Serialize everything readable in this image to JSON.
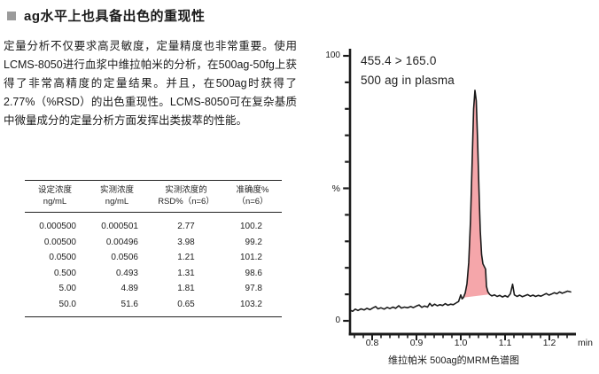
{
  "header": {
    "title": "ag水平上也具备出色的重现性",
    "bullet_color": "#9b9b9b"
  },
  "paragraph": "定量分析不仅要求高灵敏度，定量精度也非常重要。使用LCMS-8050进行血浆中维拉帕米的分析，在500ag-50fg上获得了非常高精度的定量结果。并且，在500ag时获得了2.77%（%RSD）的出色重现性。LCMS-8050可在复杂基质中微量成分的定量分析方面发挥出类拔萃的性能。",
  "table": {
    "headers": [
      {
        "line1": "设定浓度",
        "line2": "ng/mL"
      },
      {
        "line1": "实测浓度",
        "line2": "ng/mL"
      },
      {
        "line1": "实测浓度的",
        "line2": "RSD%（n=6）"
      },
      {
        "line1": "准确度%",
        "line2": "（n=6）"
      }
    ],
    "rows": [
      [
        "0.000500",
        "0.000501",
        "2.77",
        "100.2"
      ],
      [
        "0.00500",
        "0.00496",
        "3.98",
        "99.2"
      ],
      [
        "0.0500",
        "0.0506",
        "1.21",
        "101.2"
      ],
      [
        "0.500",
        "0.493",
        "1.31",
        "98.6"
      ],
      [
        "5.00",
        "4.89",
        "1.81",
        "97.8"
      ],
      [
        "50.0",
        "51.6",
        "0.65",
        "103.2"
      ]
    ]
  },
  "chart_data": {
    "type": "line",
    "title": "MRM chromatogram of verapamil 500 ag",
    "annotation_line1": "455.4 > 165.0",
    "annotation_line2": "500 ag in plasma",
    "caption": "维拉帕米 500ag的MRM色谱图",
    "xlabel": "min",
    "ylabel": "%",
    "y_top_label": "100",
    "y_bottom_label": "0",
    "xlim": [
      0.75,
      1.25
    ],
    "ylim": [
      0,
      100
    ],
    "x_ticks": [
      0.8,
      0.9,
      1.0,
      1.1,
      1.2
    ],
    "x_minor_tick_step": 0.02,
    "y_tick_step": 10,
    "grid": false,
    "legend": false,
    "line_color": "#1a1a1a",
    "fill_color": "#f5a6aa",
    "peak": {
      "apex_time_min": 1.032,
      "apex_height_pct": 87
    },
    "fill_range": [
      1.004,
      1.066
    ],
    "points": [
      [
        0.75,
        4.0
      ],
      [
        0.756,
        3.6
      ],
      [
        0.762,
        4.4
      ],
      [
        0.768,
        3.9
      ],
      [
        0.775,
        4.5
      ],
      [
        0.782,
        4.1
      ],
      [
        0.788,
        4.7
      ],
      [
        0.795,
        4.2
      ],
      [
        0.802,
        4.9
      ],
      [
        0.808,
        5.4
      ],
      [
        0.813,
        4.5
      ],
      [
        0.82,
        4.9
      ],
      [
        0.827,
        4.4
      ],
      [
        0.834,
        5.1
      ],
      [
        0.84,
        4.6
      ],
      [
        0.847,
        5.2
      ],
      [
        0.853,
        4.7
      ],
      [
        0.86,
        5.7
      ],
      [
        0.866,
        4.8
      ],
      [
        0.873,
        5.2
      ],
      [
        0.88,
        4.9
      ],
      [
        0.887,
        5.4
      ],
      [
        0.893,
        5.0
      ],
      [
        0.9,
        5.6
      ],
      [
        0.906,
        6.0
      ],
      [
        0.912,
        5.1
      ],
      [
        0.918,
        5.6
      ],
      [
        0.925,
        5.2
      ],
      [
        0.93,
        6.6
      ],
      [
        0.935,
        5.6
      ],
      [
        0.941,
        6.3
      ],
      [
        0.947,
        5.7
      ],
      [
        0.953,
        6.1
      ],
      [
        0.959,
        5.8
      ],
      [
        0.965,
        6.5
      ],
      [
        0.971,
        5.9
      ],
      [
        0.977,
        6.3
      ],
      [
        0.983,
        6.1
      ],
      [
        0.989,
        6.7
      ],
      [
        0.995,
        7.3
      ],
      [
        1.0,
        9.8
      ],
      [
        1.003,
        8.3
      ],
      [
        1.006,
        8.8
      ],
      [
        1.01,
        10.5
      ],
      [
        1.014,
        14.0
      ],
      [
        1.018,
        22.0
      ],
      [
        1.022,
        38.0
      ],
      [
        1.026,
        62.0
      ],
      [
        1.029,
        80.0
      ],
      [
        1.032,
        87.0
      ],
      [
        1.035,
        83.0
      ],
      [
        1.038,
        68.0
      ],
      [
        1.041,
        50.0
      ],
      [
        1.044,
        34.0
      ],
      [
        1.047,
        25.0
      ],
      [
        1.05,
        21.5
      ],
      [
        1.053,
        20.5
      ],
      [
        1.056,
        19.5
      ],
      [
        1.058,
        13.0
      ],
      [
        1.061,
        11.0
      ],
      [
        1.065,
        10.0
      ],
      [
        1.07,
        9.4
      ],
      [
        1.076,
        9.8
      ],
      [
        1.082,
        9.2
      ],
      [
        1.088,
        9.6
      ],
      [
        1.094,
        9.0
      ],
      [
        1.1,
        9.5
      ],
      [
        1.106,
        9.0
      ],
      [
        1.112,
        10.2
      ],
      [
        1.117,
        13.8
      ],
      [
        1.121,
        9.8
      ],
      [
        1.127,
        9.2
      ],
      [
        1.133,
        9.7
      ],
      [
        1.139,
        9.1
      ],
      [
        1.145,
        9.5
      ],
      [
        1.151,
        9.9
      ],
      [
        1.157,
        9.3
      ],
      [
        1.163,
        9.7
      ],
      [
        1.169,
        9.2
      ],
      [
        1.175,
        9.6
      ],
      [
        1.181,
        9.3
      ],
      [
        1.187,
        9.8
      ],
      [
        1.193,
        10.3
      ],
      [
        1.199,
        9.7
      ],
      [
        1.205,
        10.1
      ],
      [
        1.211,
        10.6
      ],
      [
        1.217,
        10.2
      ],
      [
        1.223,
        10.9
      ],
      [
        1.229,
        10.4
      ],
      [
        1.235,
        10.8
      ],
      [
        1.241,
        11.2
      ],
      [
        1.248,
        10.9
      ]
    ]
  }
}
